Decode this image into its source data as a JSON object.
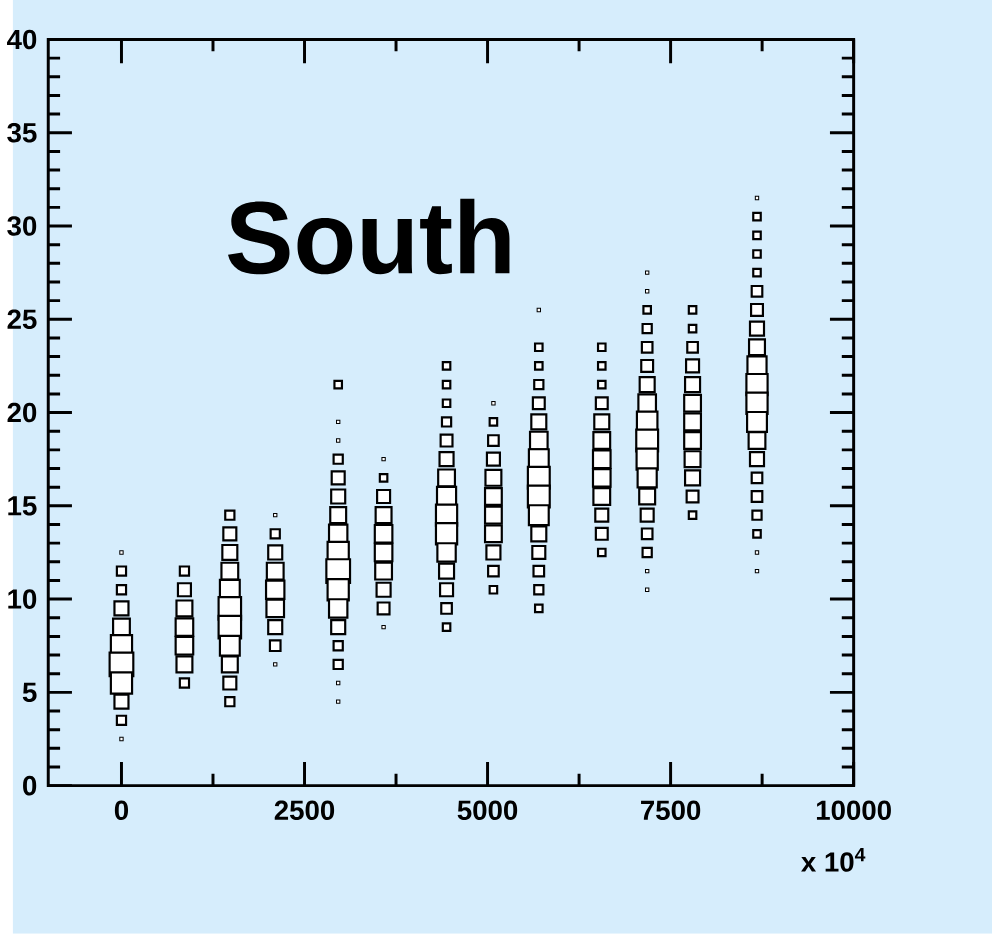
{
  "chart_data": {
    "type": "bubble",
    "title": "South",
    "xlabel": "x 10$^{4}$",
    "marker": "square",
    "relative": false,
    "xlim": [
      -1000,
      10000
    ],
    "xticks": [
      0,
      2500,
      5000,
      7500,
      10000
    ],
    "ylim": [
      0,
      40
    ],
    "yticks": [
      0,
      5,
      10,
      15,
      20,
      25,
      30,
      35,
      40
    ],
    "series": [
      {
        "color": "#000000",
        "x": [
          0,
          0,
          0,
          0,
          0,
          0,
          0,
          0,
          0,
          0,
          0
        ],
        "values": [
          12.5,
          11.5,
          10.5,
          9.5,
          8.5,
          7.5,
          6.5,
          5.5,
          4.5,
          3.5,
          2.5
        ],
        "sizes": [
          0.02,
          0.15,
          0.15,
          0.35,
          0.5,
          0.8,
          1,
          0.8,
          0.35,
          0.15,
          0.02
        ]
      },
      {
        "color": "#000000",
        "x": [
          860,
          860,
          860,
          860,
          860,
          860,
          860
        ],
        "values": [
          11.5,
          10.5,
          9.5,
          8.5,
          7.5,
          6.5,
          5.5
        ],
        "sizes": [
          0.15,
          0.3,
          0.45,
          0.55,
          0.55,
          0.45,
          0.15
        ]
      },
      {
        "color": "#000000",
        "x": [
          1480,
          1480,
          1480,
          1480,
          1480,
          1480,
          1480,
          1480,
          1480,
          1480,
          1480
        ],
        "values": [
          14.5,
          13.5,
          12.5,
          11.5,
          10.5,
          9.5,
          8.5,
          7.5,
          6.5,
          5.5,
          4.5
        ],
        "sizes": [
          0.15,
          0.3,
          0.4,
          0.5,
          0.7,
          0.9,
          0.9,
          0.7,
          0.45,
          0.3,
          0.15
        ]
      },
      {
        "color": "#000000",
        "x": [
          2100,
          2100,
          2100,
          2100,
          2100,
          2100,
          2100,
          2100,
          2100
        ],
        "values": [
          14.5,
          13.5,
          12.5,
          11.5,
          10.5,
          9.5,
          8.5,
          7.5,
          6.5
        ],
        "sizes": [
          0.02,
          0.15,
          0.35,
          0.5,
          0.6,
          0.55,
          0.35,
          0.2,
          0.02
        ]
      },
      {
        "color": "#000000",
        "x": [
          2960,
          2960,
          2960,
          2960,
          2960,
          2960,
          2960,
          2960,
          2960,
          2960,
          2960,
          2960,
          2960,
          2960,
          2960,
          2960,
          2960
        ],
        "values": [
          21.5,
          19.5,
          18.5,
          17.5,
          16.5,
          15.5,
          14.5,
          13.5,
          12.5,
          11.5,
          10.5,
          9.5,
          8.5,
          7.5,
          6.5,
          5.5,
          4.5
        ],
        "sizes": [
          0.1,
          0.02,
          0.02,
          0.15,
          0.3,
          0.35,
          0.45,
          0.6,
          0.8,
          1,
          0.8,
          0.6,
          0.35,
          0.15,
          0.15,
          0.02,
          0.02
        ]
      },
      {
        "color": "#000000",
        "x": [
          3580,
          3580,
          3580,
          3580,
          3580,
          3580,
          3580,
          3580,
          3580,
          3580
        ],
        "values": [
          17.5,
          16.5,
          15.5,
          14.5,
          13.5,
          12.5,
          11.5,
          10.5,
          9.5,
          8.5
        ],
        "sizes": [
          0.02,
          0.1,
          0.3,
          0.45,
          0.55,
          0.55,
          0.5,
          0.35,
          0.25,
          0.02
        ]
      },
      {
        "color": "#000000",
        "x": [
          4440,
          4440,
          4440,
          4440,
          4440,
          4440,
          4440,
          4440,
          4440,
          4440,
          4440,
          4440,
          4440,
          4440,
          4440
        ],
        "values": [
          22.5,
          21.5,
          20.5,
          19.5,
          18.5,
          17.5,
          16.5,
          15.5,
          14.5,
          13.5,
          12.5,
          11.5,
          10.5,
          9.5,
          8.5
        ],
        "sizes": [
          0.1,
          0.1,
          0.1,
          0.15,
          0.25,
          0.35,
          0.5,
          0.65,
          0.8,
          0.8,
          0.6,
          0.4,
          0.3,
          0.2,
          0.1
        ]
      },
      {
        "color": "#000000",
        "x": [
          5080,
          5080,
          5080,
          5080,
          5080,
          5080,
          5080,
          5080,
          5080,
          5080,
          5080
        ],
        "values": [
          20.5,
          19.5,
          18.5,
          17.5,
          16.5,
          15.5,
          14.5,
          13.5,
          12.5,
          11.5,
          10.5
        ],
        "sizes": [
          0.02,
          0.1,
          0.2,
          0.3,
          0.45,
          0.5,
          0.5,
          0.5,
          0.35,
          0.2,
          0.1
        ]
      },
      {
        "color": "#000000",
        "x": [
          5700,
          5700,
          5700,
          5700,
          5700,
          5700,
          5700,
          5700,
          5700,
          5700,
          5700,
          5700,
          5700,
          5700,
          5700,
          5700
        ],
        "values": [
          25.5,
          23.5,
          22.5,
          21.5,
          20.5,
          19.5,
          18.5,
          17.5,
          16.5,
          15.5,
          14.5,
          13.5,
          12.5,
          11.5,
          10.5,
          9.5
        ],
        "sizes": [
          0.02,
          0.1,
          0.1,
          0.15,
          0.25,
          0.4,
          0.55,
          0.7,
          0.85,
          0.85,
          0.7,
          0.4,
          0.3,
          0.2,
          0.15,
          0.1
        ]
      },
      {
        "color": "#000000",
        "x": [
          6560,
          6560,
          6560,
          6560,
          6560,
          6560,
          6560,
          6560,
          6560,
          6560,
          6560,
          6560
        ],
        "values": [
          23.5,
          22.5,
          21.5,
          20.5,
          19.5,
          18.5,
          17.5,
          16.5,
          15.5,
          14.5,
          13.5,
          12.5
        ],
        "sizes": [
          0.1,
          0.1,
          0.1,
          0.25,
          0.4,
          0.5,
          0.55,
          0.55,
          0.5,
          0.3,
          0.25,
          0.1
        ]
      },
      {
        "color": "#000000",
        "x": [
          7180,
          7180,
          7180,
          7180,
          7180,
          7180,
          7180,
          7180,
          7180,
          7180,
          7180,
          7180,
          7180,
          7180,
          7180,
          7180,
          7180,
          7180
        ],
        "values": [
          27.5,
          26.5,
          25.5,
          24.5,
          23.5,
          22.5,
          21.5,
          20.5,
          19.5,
          18.5,
          17.5,
          16.5,
          15.5,
          14.5,
          13.5,
          12.5,
          11.5,
          10.5
        ],
        "sizes": [
          0.02,
          0.02,
          0.1,
          0.15,
          0.2,
          0.25,
          0.4,
          0.55,
          0.75,
          0.85,
          0.8,
          0.65,
          0.45,
          0.3,
          0.2,
          0.15,
          0.02,
          0.02
        ]
      },
      {
        "color": "#000000",
        "x": [
          7800,
          7800,
          7800,
          7800,
          7800,
          7800,
          7800,
          7800,
          7800,
          7800,
          7800,
          7800
        ],
        "values": [
          25.5,
          24.5,
          23.5,
          22.5,
          21.5,
          20.5,
          19.5,
          18.5,
          17.5,
          16.5,
          15.5,
          14.5
        ],
        "sizes": [
          0.1,
          0.1,
          0.2,
          0.3,
          0.4,
          0.5,
          0.5,
          0.5,
          0.45,
          0.4,
          0.25,
          0.1
        ]
      },
      {
        "color": "#000000",
        "x": [
          8680,
          8680,
          8680,
          8680,
          8680,
          8680,
          8680,
          8680,
          8680,
          8680,
          8680,
          8680,
          8680,
          8680,
          8680,
          8680,
          8680,
          8680,
          8680,
          8680,
          8680
        ],
        "values": [
          31.5,
          30.5,
          29.5,
          28.5,
          27.5,
          26.5,
          25.5,
          24.5,
          23.5,
          22.5,
          21.5,
          20.5,
          19.5,
          18.5,
          17.5,
          16.5,
          15.5,
          14.5,
          13.5,
          12.5,
          11.5
        ],
        "sizes": [
          0.02,
          0.1,
          0.1,
          0.1,
          0.1,
          0.2,
          0.25,
          0.35,
          0.45,
          0.65,
          0.8,
          0.8,
          0.7,
          0.5,
          0.35,
          0.2,
          0.2,
          0.15,
          0.1,
          0.02,
          0.02
        ]
      }
    ]
  }
}
